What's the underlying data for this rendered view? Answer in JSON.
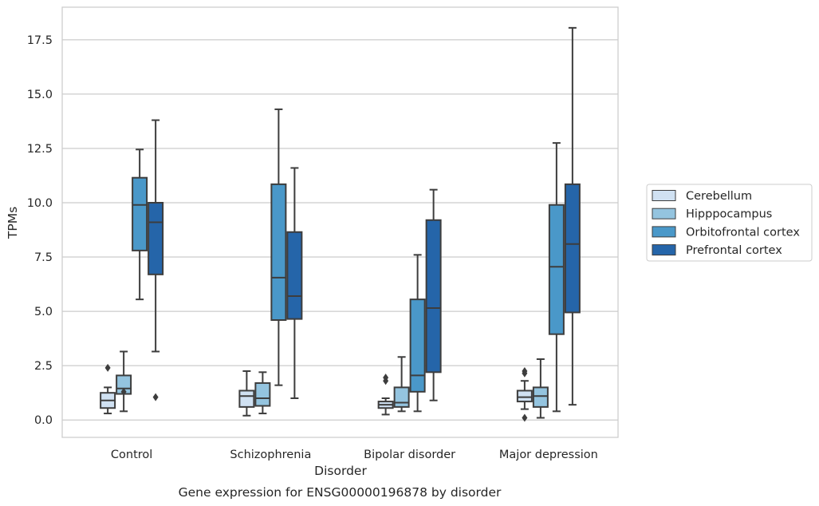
{
  "caption": "Gene expression for ENSG00000196878 by disorder",
  "chart_data": {
    "type": "box",
    "xlabel": "Disorder",
    "ylabel": "TPMs",
    "ylim": [
      -0.8,
      19.0
    ],
    "yticks": [
      0.0,
      2.5,
      5.0,
      7.5,
      10.0,
      12.5,
      15.0,
      17.5
    ],
    "ytick_labels": [
      "0.0",
      "2.5",
      "5.0",
      "7.5",
      "10.0",
      "12.5",
      "15.0",
      "17.5"
    ],
    "grid": "horizontal",
    "legend_position": "right",
    "categories": [
      "Control",
      "Schizophrenia",
      "Bipolar disorder",
      "Major depression"
    ],
    "series": [
      {
        "name": "Cerebellum",
        "color": "#d0e1f2",
        "boxes": [
          {
            "whisker_low": 0.3,
            "q1": 0.55,
            "median": 0.9,
            "q3": 1.25,
            "whisker_high": 1.5,
            "outliers": [
              2.4
            ]
          },
          {
            "whisker_low": 0.2,
            "q1": 0.6,
            "median": 1.1,
            "q3": 1.35,
            "whisker_high": 2.25,
            "outliers": []
          },
          {
            "whisker_low": 0.25,
            "q1": 0.55,
            "median": 0.7,
            "q3": 0.85,
            "whisker_high": 1.0,
            "outliers": [
              1.8,
              1.95
            ]
          },
          {
            "whisker_low": 0.5,
            "q1": 0.85,
            "median": 1.05,
            "q3": 1.35,
            "whisker_high": 1.8,
            "outliers": [
              2.15,
              2.25,
              0.1
            ]
          }
        ]
      },
      {
        "name": "Hipppocampus",
        "color": "#94c4df",
        "boxes": [
          {
            "whisker_low": 0.4,
            "q1": 1.2,
            "median": 1.45,
            "q3": 2.05,
            "whisker_high": 3.15,
            "outliers": [
              1.3
            ]
          },
          {
            "whisker_low": 0.3,
            "q1": 0.65,
            "median": 1.0,
            "q3": 1.7,
            "whisker_high": 2.2,
            "outliers": []
          },
          {
            "whisker_low": 0.4,
            "q1": 0.6,
            "median": 0.8,
            "q3": 1.5,
            "whisker_high": 2.9,
            "outliers": []
          },
          {
            "whisker_low": 0.1,
            "q1": 0.6,
            "median": 1.1,
            "q3": 1.5,
            "whisker_high": 2.8,
            "outliers": []
          }
        ]
      },
      {
        "name": "Orbitofrontal cortex",
        "color": "#4a98c9",
        "boxes": [
          {
            "whisker_low": 5.55,
            "q1": 7.8,
            "median": 9.9,
            "q3": 11.15,
            "whisker_high": 12.45,
            "outliers": []
          },
          {
            "whisker_low": 1.6,
            "q1": 4.6,
            "median": 6.55,
            "q3": 10.85,
            "whisker_high": 14.3,
            "outliers": []
          },
          {
            "whisker_low": 0.4,
            "q1": 1.3,
            "median": 2.05,
            "q3": 5.55,
            "whisker_high": 7.6,
            "outliers": []
          },
          {
            "whisker_low": 0.4,
            "q1": 3.95,
            "median": 7.05,
            "q3": 9.9,
            "whisker_high": 12.75,
            "outliers": []
          }
        ]
      },
      {
        "name": "Prefrontal cortex",
        "color": "#2565a9",
        "boxes": [
          {
            "whisker_low": 3.15,
            "q1": 6.7,
            "median": 9.1,
            "q3": 10.0,
            "whisker_high": 13.8,
            "outliers": [
              1.05
            ]
          },
          {
            "whisker_low": 1.0,
            "q1": 4.65,
            "median": 5.7,
            "q3": 8.65,
            "whisker_high": 11.6,
            "outliers": []
          },
          {
            "whisker_low": 0.9,
            "q1": 2.2,
            "median": 5.15,
            "q3": 9.2,
            "whisker_high": 10.6,
            "outliers": []
          },
          {
            "whisker_low": 0.7,
            "q1": 4.95,
            "median": 8.1,
            "q3": 10.85,
            "whisker_high": 18.05,
            "outliers": []
          }
        ]
      }
    ]
  }
}
